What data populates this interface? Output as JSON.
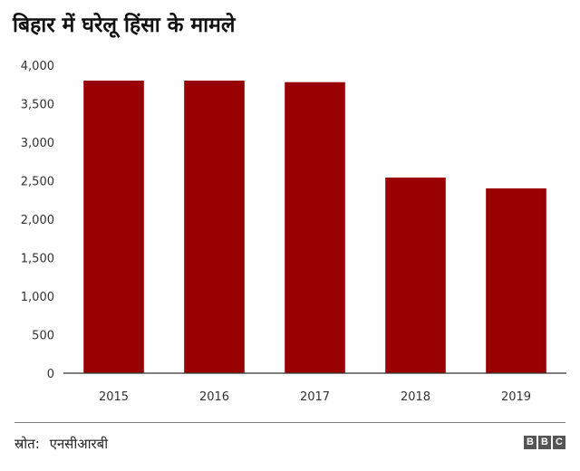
{
  "header": {
    "title": "बिहार में घरेलू हिंसा के मामले"
  },
  "chart_data": {
    "type": "bar",
    "categories": [
      "2015",
      "2016",
      "2017",
      "2018",
      "2019"
    ],
    "values": [
      3800,
      3800,
      3780,
      2540,
      2400
    ],
    "yticks": [
      "0",
      "500",
      "1,000",
      "1,500",
      "2,000",
      "2,500",
      "3,000",
      "3,500",
      "4,000"
    ],
    "ylim": [
      0,
      4000
    ],
    "grid": false,
    "bar_color": "#990000",
    "axis_color": "#333333"
  },
  "footer": {
    "source_label": "स्रोत:",
    "source_value": "एनसीआरबी",
    "logo_letters": [
      "B",
      "B",
      "C"
    ]
  }
}
